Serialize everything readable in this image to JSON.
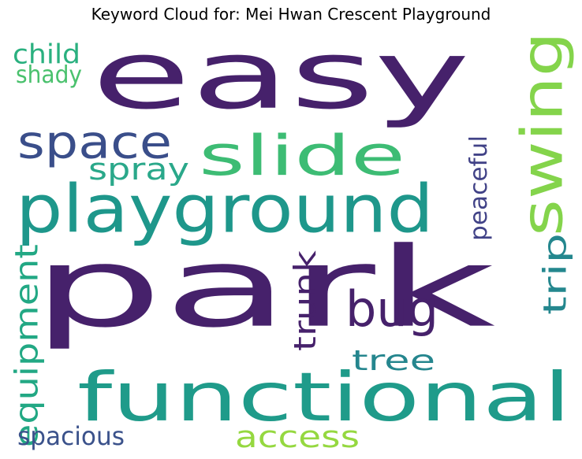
{
  "title": "Keyword Cloud for: Mei Hwan Crescent Playground",
  "chart_data": {
    "type": "wordcloud",
    "title": "Keyword Cloud for: Mei Hwan Crescent Playground",
    "words": [
      {
        "text": "park",
        "color": "#46216b"
      },
      {
        "text": "easy",
        "color": "#46216b"
      },
      {
        "text": "functional",
        "color": "#1f9b8a"
      },
      {
        "text": "playground",
        "color": "#1e978b"
      },
      {
        "text": "slide",
        "color": "#3dbc74"
      },
      {
        "text": "swing",
        "color": "#84d44b"
      },
      {
        "text": "space",
        "color": "#3a4e8a"
      },
      {
        "text": "bug",
        "color": "#46216b"
      },
      {
        "text": "spray",
        "color": "#2aa88a"
      },
      {
        "text": "access",
        "color": "#95d840"
      },
      {
        "text": "equipment",
        "color": "#22a884"
      },
      {
        "text": "tree",
        "color": "#25868e"
      },
      {
        "text": "trunk",
        "color": "#46216b"
      },
      {
        "text": "trip",
        "color": "#24878e"
      },
      {
        "text": "peaceful",
        "color": "#414287"
      },
      {
        "text": "child",
        "color": "#2ab07f"
      },
      {
        "text": "shady",
        "color": "#4ac16d"
      },
      {
        "text": "spacious",
        "color": "#3b528b"
      }
    ]
  }
}
